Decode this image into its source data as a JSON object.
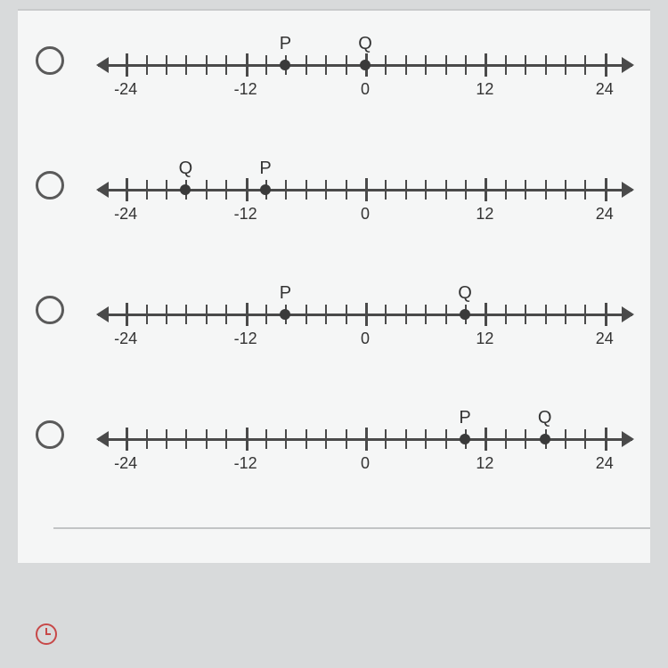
{
  "axis": {
    "min": -25,
    "max": 25,
    "tick_start": -24,
    "tick_end": 24,
    "tick_step": 2,
    "label_step": 12,
    "labels": [
      "-24",
      "-12",
      "0",
      "12",
      "24"
    ],
    "line_color": "#4a4a4a",
    "label_fontsize": 18
  },
  "options": [
    {
      "points": [
        {
          "label": "P",
          "value": -8
        },
        {
          "label": "Q",
          "value": 0
        }
      ]
    },
    {
      "points": [
        {
          "label": "Q",
          "value": -18
        },
        {
          "label": "P",
          "value": -10
        }
      ]
    },
    {
      "points": [
        {
          "label": "P",
          "value": -8
        },
        {
          "label": "Q",
          "value": 10
        }
      ]
    },
    {
      "points": [
        {
          "label": "P",
          "value": 10
        },
        {
          "label": "Q",
          "value": 18
        }
      ]
    }
  ],
  "colors": {
    "page_bg": "#d8dadb",
    "paper_bg": "#f5f6f6",
    "radio_border": "#5a5a5a",
    "point": "#3a3a3a",
    "text": "#333333",
    "divider": "#c2c4c5",
    "clock": "#c74848"
  }
}
